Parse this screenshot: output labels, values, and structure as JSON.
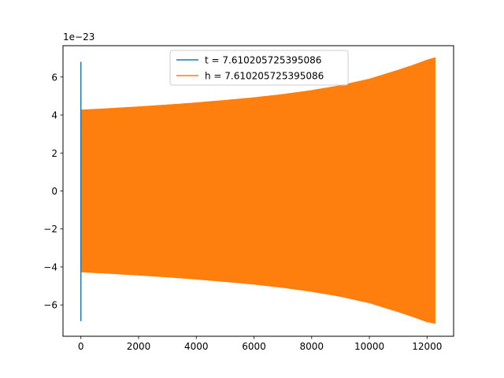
{
  "chart_data": {
    "type": "line",
    "title": "",
    "xlabel": "",
    "ylabel": "",
    "y_offset_label": "1e−23",
    "xlim": [
      -620,
      12920
    ],
    "ylim": [
      -7.65,
      7.65
    ],
    "xticks": [
      0,
      2000,
      4000,
      6000,
      8000,
      10000,
      12000
    ],
    "xtick_labels": [
      "0",
      "2000",
      "4000",
      "6000",
      "8000",
      "10000",
      "12000"
    ],
    "yticks": [
      -6,
      -4,
      -2,
      0,
      2,
      4,
      6
    ],
    "ytick_labels": [
      "−6",
      "−4",
      "−2",
      "0",
      "2",
      "4",
      "6"
    ],
    "grid": false,
    "legend_position": "upper center",
    "series": [
      {
        "name": "t = 7.610205725395086",
        "color": "#1f77b4",
        "style": "spike",
        "x": [
          0,
          0,
          0,
          0
        ],
        "y": [
          6.8,
          -6.85,
          3.3,
          1.3
        ]
      },
      {
        "name": "h = 7.610205725395086",
        "color": "#ff7f0e",
        "style": "oscillation-envelope",
        "x_start": 0,
        "x_end": 12270,
        "envelope_x": [
          0,
          1000,
          2000,
          3000,
          4000,
          5000,
          6000,
          7000,
          8000,
          9000,
          10000,
          11000,
          11500,
          12000,
          12270
        ],
        "envelope_upper": [
          4.25,
          4.33,
          4.42,
          4.52,
          4.63,
          4.76,
          4.9,
          5.07,
          5.28,
          5.54,
          5.88,
          6.35,
          6.6,
          6.88,
          7.0
        ],
        "envelope_lower": [
          -4.25,
          -4.33,
          -4.42,
          -4.52,
          -4.63,
          -4.76,
          -4.9,
          -5.07,
          -5.28,
          -5.54,
          -5.88,
          -6.35,
          -6.6,
          -6.88,
          -6.95
        ],
        "initial_segment": {
          "x": [
            0,
            0
          ],
          "y": [
            3.0,
            1.3
          ]
        }
      }
    ]
  }
}
